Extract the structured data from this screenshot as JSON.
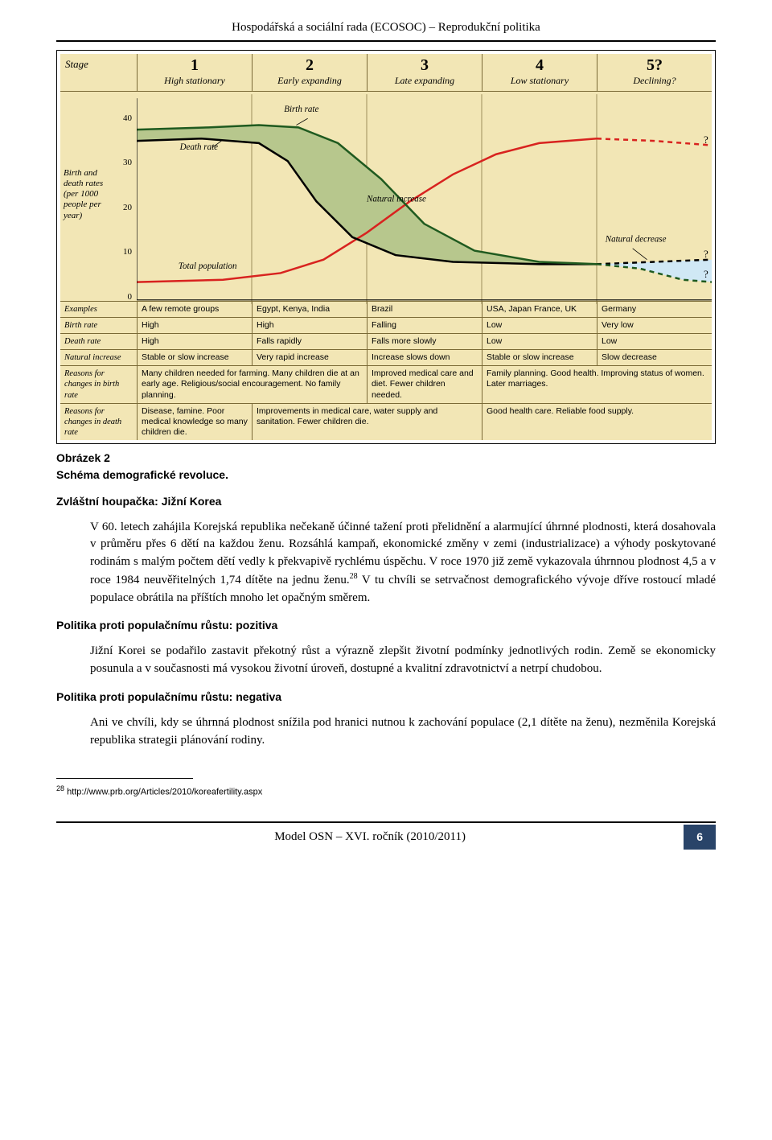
{
  "header": {
    "text": "Hospodářská a sociální rada (ECOSOC) – Reprodukční politika"
  },
  "chart": {
    "type": "line",
    "background_color": "#f2e6b5",
    "grid_color": "#7a6a36",
    "stages": [
      {
        "num": "1",
        "desc": "High stationary"
      },
      {
        "num": "2",
        "desc": "Early expanding"
      },
      {
        "num": "3",
        "desc": "Late expanding"
      },
      {
        "num": "4",
        "desc": "Low stationary"
      },
      {
        "num": "5?",
        "desc": "Declining?"
      }
    ],
    "stage_label": "Stage",
    "y_axis": {
      "label": "Birth and death rates (per 1000 people per year)",
      "ticks": [
        0,
        10,
        20,
        30,
        40
      ],
      "ylim": [
        0,
        45
      ],
      "tick_fontsize": 11
    },
    "annotations": {
      "birth_rate": "Birth rate",
      "death_rate": "Death rate",
      "total_population": "Total population",
      "natural_increase": "Natural increase",
      "natural_decrease": "Natural decrease",
      "q1": "?",
      "q2": "?",
      "q3": "?"
    },
    "series": {
      "birth_rate": {
        "color": "#1f5a1f",
        "width": 2.5,
        "points": [
          [
            0,
            38
          ],
          [
            100,
            38.5
          ],
          [
            170,
            39
          ],
          [
            225,
            38.5
          ],
          [
            280,
            35
          ],
          [
            340,
            27
          ],
          [
            400,
            17
          ],
          [
            470,
            11
          ],
          [
            560,
            8.5
          ],
          [
            640,
            8
          ]
        ],
        "dash_points": [
          [
            640,
            8
          ],
          [
            700,
            7
          ],
          [
            760,
            4.5
          ],
          [
            800,
            4
          ]
        ]
      },
      "death_rate": {
        "color": "#000000",
        "width": 2.5,
        "points": [
          [
            0,
            35.5
          ],
          [
            90,
            36
          ],
          [
            170,
            35
          ],
          [
            210,
            31
          ],
          [
            250,
            22
          ],
          [
            300,
            14
          ],
          [
            360,
            10
          ],
          [
            440,
            8.5
          ],
          [
            560,
            8
          ],
          [
            640,
            8
          ]
        ],
        "dash_points": [
          [
            640,
            8
          ],
          [
            720,
            8.5
          ],
          [
            800,
            9
          ]
        ]
      },
      "population": {
        "color": "#d8231f",
        "width": 2.5,
        "points": [
          [
            0,
            4
          ],
          [
            120,
            4.5
          ],
          [
            200,
            6
          ],
          [
            260,
            9
          ],
          [
            320,
            15
          ],
          [
            380,
            22
          ],
          [
            440,
            28
          ],
          [
            500,
            32.5
          ],
          [
            560,
            35
          ],
          [
            640,
            36
          ]
        ],
        "dash_points": [
          [
            640,
            36
          ],
          [
            720,
            35.5
          ],
          [
            800,
            34.5
          ]
        ]
      },
      "natural_increase_fill": "#b7c78d",
      "declining_fill": "#d0e8f5"
    },
    "table": {
      "rows_meta": [
        {
          "label": "Examples",
          "cells": [
            "A few remote groups",
            "Egypt, Kenya, India",
            "Brazil",
            "USA, Japan France, UK",
            "Germany"
          ]
        },
        {
          "label": "Birth rate",
          "cells": [
            "High",
            "High",
            "Falling",
            "Low",
            "Very low"
          ]
        },
        {
          "label": "Death rate",
          "cells": [
            "High",
            "Falls rapidly",
            "Falls more slowly",
            "Low",
            "Low"
          ]
        },
        {
          "label": "Natural increase",
          "cells": [
            "Stable or slow increase",
            "Very rapid increase",
            "Increase slows down",
            "Stable or slow increase",
            "Slow decrease"
          ]
        },
        {
          "label": "Reasons for changes in birth rate",
          "merged": [
            {
              "span": 2,
              "text": "Many children needed for farming. Many children die at an early age. Religious/social encouragement. No family planning."
            },
            {
              "span": 1,
              "text": "Improved medical care and diet. Fewer children needed."
            },
            {
              "span": 2,
              "text": "Family planning. Good health. Improving status of women. Later marriages."
            }
          ]
        },
        {
          "label": "Reasons for changes in death rate",
          "merged": [
            {
              "span": 1,
              "text": "Disease, famine. Poor medical knowledge so many children die."
            },
            {
              "span": 2,
              "text": "Improvements in medical care, water supply and sanitation. Fewer children die."
            },
            {
              "span": 2,
              "text": "Good health care. Reliable food supply."
            }
          ]
        }
      ]
    }
  },
  "caption": {
    "line1": "Obrázek 2",
    "line2": "Schéma demografické revoluce."
  },
  "sections": {
    "s1_title": "Zvláštní houpačka: Jižní Korea",
    "s1_para": "V 60. letech zahájila Korejská republika nečekaně účinné tažení proti přelidnění a alarmující úhrnné plodnosti, která dosahovala v průměru přes 6 dětí na každou ženu. Rozsáhlá kampaň, ekonomické změny v zemi (industrializace) a výhody poskytované rodinám s malým počtem dětí vedly k překvapivě rychlému úspěchu. V roce 1970 již země vykazovala úhrnnou plodnost 4,5 a v roce 1984 neuvěřitelných 1,74 dítěte na jednu ženu.",
    "s1_fn_mark": "28",
    "s1_para_tail": " V tu chvíli se setrvačnost demografického vývoje dříve rostoucí mladé populace obrátila na příštích mnoho let opačným směrem.",
    "s2_title": "Politika proti populačnímu růstu: pozitiva",
    "s2_para": "Jižní Korei se podařilo zastavit překotný růst a výrazně zlepšit životní podmínky jednotlivých rodin. Země se ekonomicky posunula a v současnosti má vysokou životní úroveň, dostupné a kvalitní zdravotnictví a netrpí chudobou.",
    "s3_title": "Politika proti populačnímu růstu: negativa",
    "s3_para": "Ani ve chvíli, kdy se úhrnná plodnost snížila pod hranici nutnou k zachování populace (2,1 dítěte na ženu), nezměnila Korejská republika strategii plánování rodiny."
  },
  "footnote": {
    "mark": "28",
    "text": "http://www.prb.org/Articles/2010/koreafertility.aspx"
  },
  "footer": {
    "text": "Model OSN – XVI. ročník (2010/2011)",
    "page": "6",
    "page_bg": "#294469"
  }
}
